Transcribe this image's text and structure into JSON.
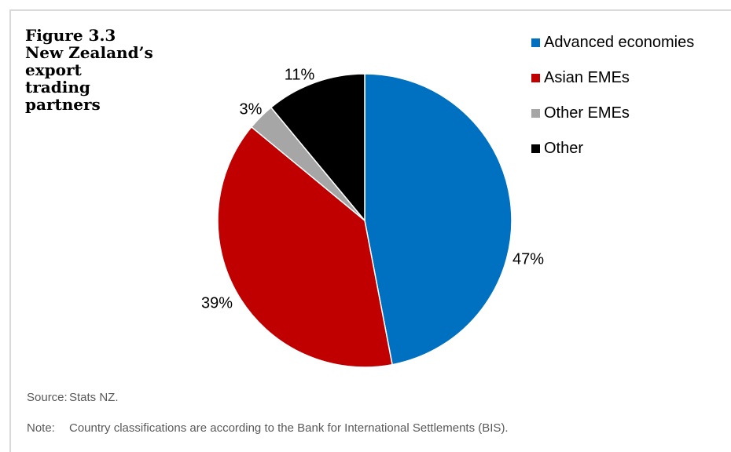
{
  "figure": {
    "title_lines": [
      "Figure 3.3",
      "New Zealand’s",
      "export",
      "trading",
      "partners"
    ]
  },
  "chart_data": {
    "type": "pie",
    "categories": [
      "Advanced economies",
      "Asian EMEs",
      "Other EMEs",
      "Other"
    ],
    "values": [
      47,
      39,
      3,
      11
    ],
    "value_labels": [
      "47%",
      "39%",
      "3%",
      "11%"
    ],
    "colors": [
      "#0070c0",
      "#c00000",
      "#a6a6a6",
      "#000000"
    ],
    "start": "12 o'clock",
    "direction": "clockwise",
    "legend_position": "top-right"
  },
  "footnotes": [
    {
      "key": "Source:",
      "text": "Stats NZ."
    },
    {
      "key": "Note:",
      "text": "Country classifications are according to the Bank for International Settlements (BIS)."
    }
  ]
}
